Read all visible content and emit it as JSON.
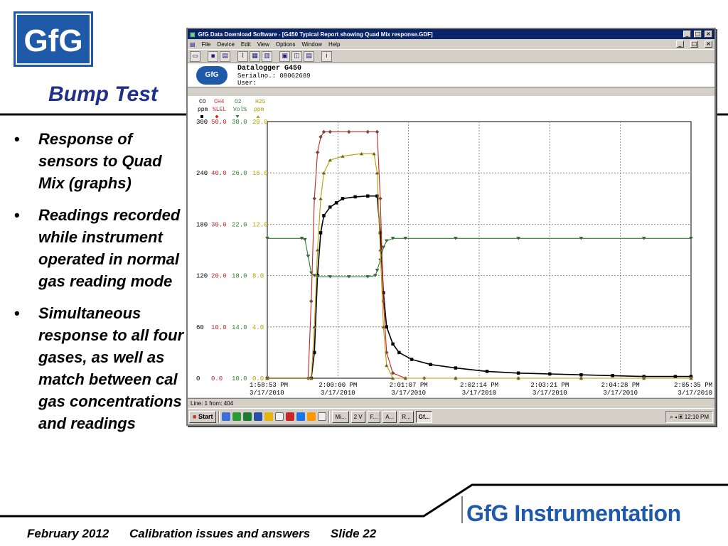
{
  "slide": {
    "logo_text": "GfG",
    "title": "Bump Test",
    "bullets": [
      "Response of sensors to Quad Mix (graphs)",
      "Readings recorded while instrument operated in normal gas reading mode",
      "Simultaneous response to all four gases, as well as match between cal gas concentrations and readings"
    ],
    "brand": "GfG Instrumentation",
    "footer": {
      "date": "February  2012",
      "topic": "Calibration  issues and answers",
      "slide": "Slide 22"
    }
  },
  "window": {
    "title": "GfG Data Download Software - [G450 Typical Report showing Quad Mix response.GDF]",
    "menu": [
      "File",
      "Device",
      "Edit",
      "View",
      "Options",
      "Window",
      "Help"
    ],
    "header": {
      "device": "Datalogger G450",
      "serial": "Serialno.: 08062689",
      "user": "User:",
      "logo_text": "GfG"
    },
    "statusbar": "Line: 1 from: 404",
    "taskbar": {
      "start": "Start",
      "buttons": [
        "Mi...",
        "2 V",
        "F...",
        "A...",
        "R...",
        "Gf..."
      ],
      "clock": "12:10 PM"
    }
  },
  "colors": {
    "co": "#000000",
    "ch4": "#cc2222",
    "o2": "#2e7d32",
    "h2s": "#b7a000",
    "title": "#1f2f8a",
    "brand": "#1f5aa8"
  },
  "chart_data": {
    "type": "line",
    "x_labels": [
      [
        "1:58:53 PM",
        "3/17/2010"
      ],
      [
        "2:00:00 PM",
        "3/17/2010"
      ],
      [
        "2:01:07 PM",
        "3/17/2010"
      ],
      [
        "2:02:14 PM",
        "3/17/2010"
      ],
      [
        "2:03:21 PM",
        "3/17/2010"
      ],
      [
        "2:04:28 PM",
        "3/17/2010"
      ],
      [
        "2:05:35 PM",
        "3/17/2010"
      ]
    ],
    "axes": [
      {
        "name": "CO",
        "unit": "ppm",
        "ticks": [
          "300",
          "240",
          "180",
          "120",
          "60",
          "0"
        ],
        "ylim": [
          0,
          300
        ]
      },
      {
        "name": "CH4",
        "unit": "%LEL",
        "ticks": [
          "50.0",
          "40.0",
          "30.0",
          "20.0",
          "10.0",
          "0.0"
        ],
        "ylim": [
          0,
          50
        ]
      },
      {
        "name": "O2",
        "unit": "Vol%",
        "ticks": [
          "30.0",
          "26.0",
          "22.0",
          "18.0",
          "14.0",
          "10.0"
        ],
        "ylim": [
          10,
          30
        ]
      },
      {
        "name": "H2S",
        "unit": "ppm",
        "ticks": [
          "20.0",
          "16.0",
          "12.0",
          "8.0",
          "4.0",
          "0.0"
        ],
        "ylim": [
          0,
          20
        ]
      }
    ],
    "x_range_min": [
      0,
      6.75
    ],
    "series": [
      {
        "name": "CO",
        "axis": 0,
        "x": [
          0,
          0.7,
          0.75,
          0.8,
          0.85,
          0.9,
          1.0,
          1.1,
          1.2,
          1.4,
          1.6,
          1.75,
          1.8,
          1.85,
          1.9,
          2.0,
          2.1,
          2.3,
          2.6,
          3.0,
          3.5,
          4.0,
          4.5,
          5.0,
          5.5,
          6.0,
          6.5,
          6.75
        ],
        "y": [
          0,
          0,
          30,
          120,
          170,
          190,
          200,
          205,
          210,
          212,
          213,
          213,
          170,
          100,
          60,
          40,
          30,
          22,
          16,
          12,
          8,
          6,
          5,
          4,
          3,
          2,
          2,
          2
        ]
      },
      {
        "name": "CH4",
        "axis": 1,
        "x": [
          0,
          0.65,
          0.7,
          0.75,
          0.8,
          0.85,
          0.9,
          1.0,
          1.3,
          1.6,
          1.75,
          1.8,
          1.85,
          1.9,
          2.0,
          2.2,
          2.5,
          3.0,
          4.0,
          5.0,
          6.0,
          6.75
        ],
        "y": [
          0,
          0,
          15,
          35,
          44,
          47,
          48,
          48,
          48,
          48,
          48,
          35,
          15,
          5,
          1,
          0,
          0,
          0,
          0,
          0,
          0,
          0
        ]
      },
      {
        "name": "O2",
        "axis": 2,
        "x": [
          0,
          0.55,
          0.6,
          0.65,
          0.7,
          0.75,
          0.8,
          1.0,
          1.3,
          1.6,
          1.72,
          1.75,
          1.8,
          1.85,
          1.9,
          2.0,
          2.2,
          3.0,
          4.0,
          5.0,
          6.0,
          6.75
        ],
        "y": [
          20.9,
          20.9,
          20.8,
          19.5,
          18.2,
          18.0,
          17.9,
          17.9,
          17.9,
          17.9,
          18.0,
          18.4,
          19.2,
          20.2,
          20.7,
          20.9,
          20.9,
          20.9,
          20.9,
          20.9,
          20.9,
          20.9
        ]
      },
      {
        "name": "H2S",
        "axis": 3,
        "x": [
          0,
          0.7,
          0.75,
          0.8,
          0.85,
          0.9,
          1.0,
          1.2,
          1.5,
          1.7,
          1.75,
          1.8,
          1.85,
          1.9,
          2.0,
          2.2,
          3.0,
          4.0,
          5.0,
          6.0,
          6.75
        ],
        "y": [
          0,
          0,
          4,
          10,
          14,
          16,
          17,
          17.3,
          17.5,
          17.5,
          16,
          10,
          4,
          1,
          0,
          0,
          0,
          0,
          0,
          0,
          0
        ]
      }
    ],
    "grid": true,
    "legend": "top-left"
  }
}
